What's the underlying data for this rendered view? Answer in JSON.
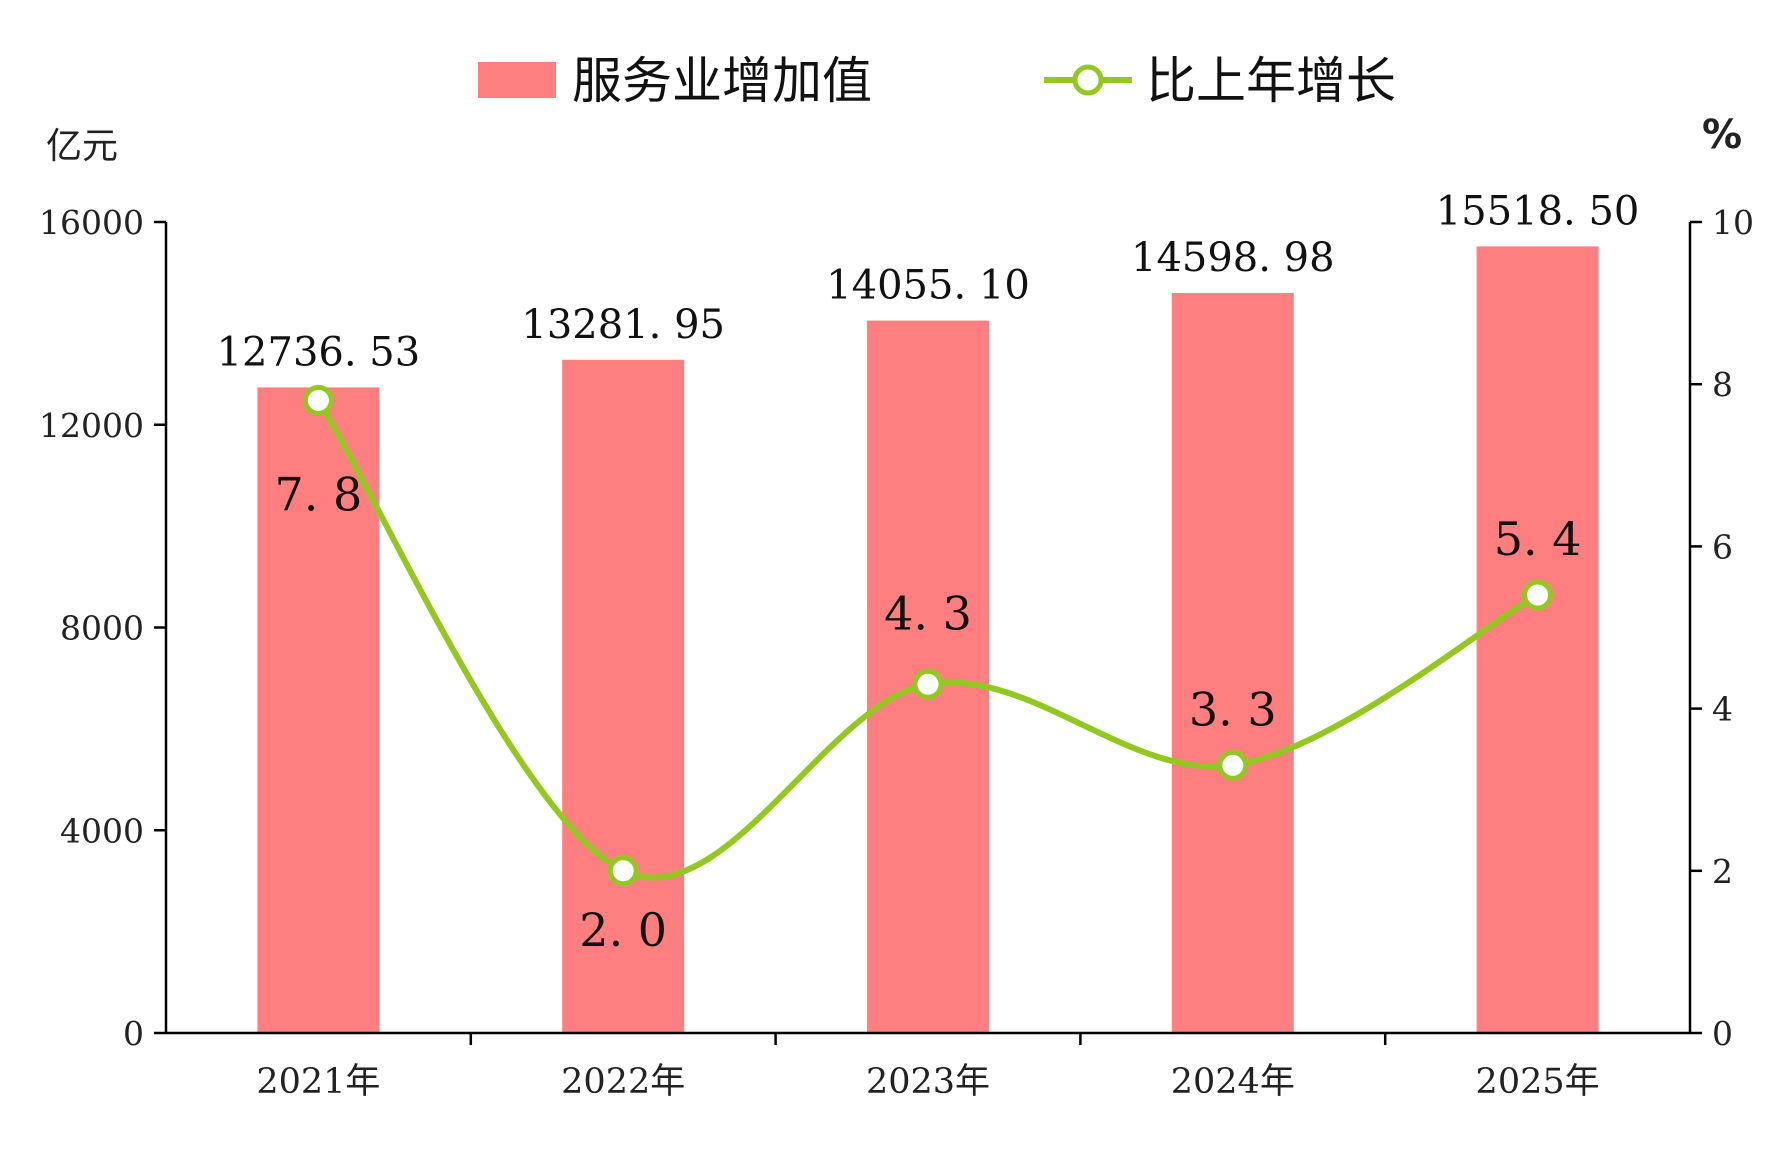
{
  "chart_data": {
    "type": "bar",
    "categories": [
      "2021年",
      "2022年",
      "2023年",
      "2024年",
      "2025年"
    ],
    "series": [
      {
        "name": "服务业增加值",
        "type": "bar",
        "axis": "left",
        "values": [
          12736.53,
          13281.95,
          14055.1,
          14598.98,
          15518.5
        ],
        "labels": [
          "12736. 53",
          "13281. 95",
          "14055. 10",
          "14598. 98",
          "15518. 50"
        ],
        "color": "#ff7f80"
      },
      {
        "name": "比上年增长",
        "type": "line",
        "axis": "right",
        "smooth": true,
        "values": [
          7.8,
          2.0,
          4.3,
          3.3,
          5.4
        ],
        "labels": [
          "7. 8",
          "2. 0",
          "4. 3",
          "3. 3",
          "5. 4"
        ],
        "color": "#92c81f"
      }
    ],
    "y_left": {
      "unit": "亿元",
      "range": [
        0,
        16000
      ],
      "ticks": [
        0,
        4000,
        8000,
        12000,
        16000
      ],
      "tick_labels": [
        "0",
        "4000",
        "8000",
        "12000",
        "16000"
      ]
    },
    "y_right": {
      "unit": "%",
      "range": [
        0,
        10
      ],
      "ticks": [
        0,
        2,
        4,
        6,
        8,
        10
      ],
      "tick_labels": [
        "0",
        "2",
        "4",
        "6",
        "8",
        "10"
      ]
    },
    "legend_position": "top-center",
    "grid": false
  }
}
